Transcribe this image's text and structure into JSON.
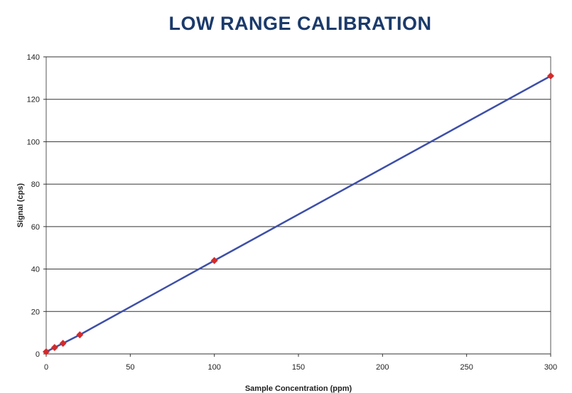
{
  "chart_data": {
    "type": "line",
    "title": "LOW RANGE CALIBRATION",
    "xlabel": "Sample Concentration (ppm)",
    "ylabel": "Signal (cps)",
    "xlim": [
      0,
      300
    ],
    "ylim": [
      0,
      140
    ],
    "x_ticks": [
      "0",
      "50",
      "100",
      "150",
      "200",
      "250",
      "300"
    ],
    "y_ticks": [
      "0",
      "20",
      "40",
      "60",
      "80",
      "100",
      "120",
      "140"
    ],
    "grid": true,
    "series": [
      {
        "x": [
          0,
          5,
          10,
          20,
          100,
          300
        ],
        "y": [
          1,
          3,
          5,
          9,
          44,
          131
        ],
        "line_color": "#3d4fa8",
        "marker_color": "#d42a2a",
        "marker": "diamond"
      }
    ]
  }
}
